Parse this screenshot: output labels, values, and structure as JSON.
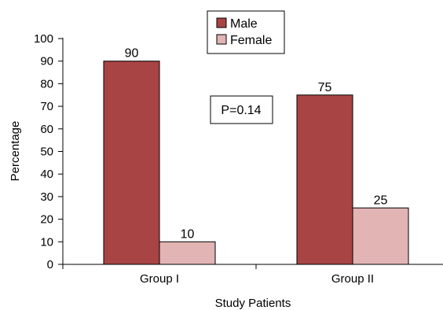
{
  "chart_data": {
    "type": "bar",
    "categories": [
      "Group I",
      "Group II"
    ],
    "series": [
      {
        "name": "Male",
        "values": [
          90,
          75
        ],
        "color": "#a84444"
      },
      {
        "name": "Female",
        "values": [
          10,
          25
        ],
        "color": "#e2b4b4"
      }
    ],
    "data_labels": [
      [
        "90",
        "75"
      ],
      [
        "10",
        "25"
      ]
    ],
    "xlabel": "Study Patients",
    "ylabel": "Percentage",
    "ylim": [
      0,
      100
    ],
    "yticks": [
      0,
      10,
      20,
      30,
      40,
      50,
      60,
      70,
      80,
      90,
      100
    ],
    "grid": false,
    "legend": "top-center",
    "annotation": "P=0.14"
  }
}
